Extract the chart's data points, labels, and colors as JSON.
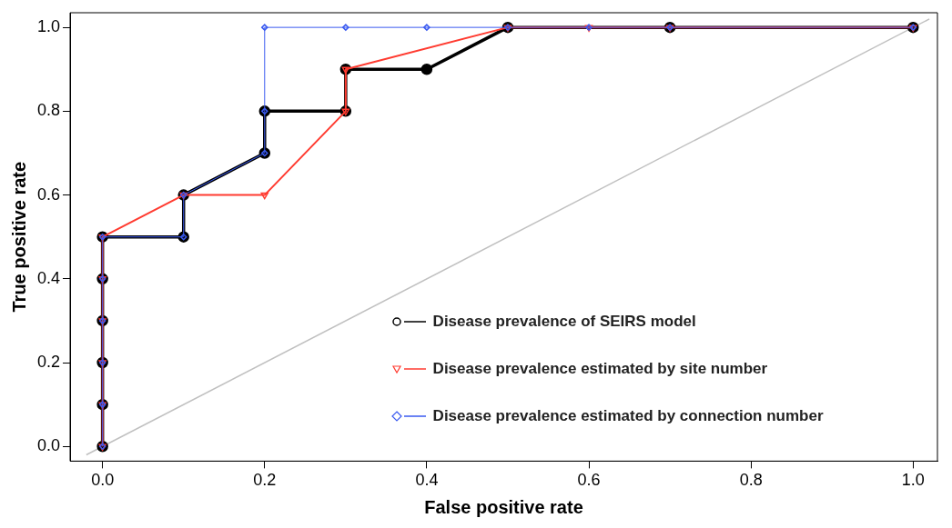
{
  "chart_data": {
    "type": "line",
    "xlabel": "False positive rate",
    "ylabel": "True positive rate",
    "xlim": [
      -0.04,
      1.03
    ],
    "ylim": [
      -0.035,
      1.035
    ],
    "xticks": [
      {
        "value": 0,
        "label": "0.0"
      },
      0.2,
      0.4,
      0.6,
      0.8,
      {
        "value": 1,
        "label": "1.0"
      }
    ],
    "yticks": [
      {
        "value": 0,
        "label": "0.0"
      },
      0.2,
      0.4,
      0.6,
      0.8,
      {
        "value": 1,
        "label": "1.0"
      }
    ],
    "grid": false,
    "legend": "right",
    "series": [
      {
        "type": "line",
        "color": "#c0c0c0",
        "marker": "none",
        "x": [
          -0.02,
          1.02
        ],
        "values": [
          -0.02,
          1.02
        ]
      },
      {
        "name": "Disease prevalence of SEIRS model",
        "color": "#000000",
        "marker": "circle",
        "x": [
          0,
          0,
          0,
          0,
          0,
          0,
          0.1,
          0.1,
          0.2,
          0.2,
          0.3,
          0.3,
          0.4,
          0.5,
          0.7,
          1.0
        ],
        "values": [
          0,
          0.1,
          0.2,
          0.3,
          0.4,
          0.5,
          0.5,
          0.6,
          0.7,
          0.8,
          0.8,
          0.9,
          0.9,
          1.0,
          1.0,
          1.0
        ]
      },
      {
        "name": "Disease prevalence estimated by site number",
        "color": "#ff3b30",
        "marker": "triangle",
        "x": [
          0,
          0,
          0,
          0,
          0,
          0,
          0.1,
          0.2,
          0.3,
          0.3,
          0.5,
          0.6,
          0.7,
          1.0
        ],
        "values": [
          0,
          0.1,
          0.2,
          0.3,
          0.4,
          0.5,
          0.6,
          0.6,
          0.8,
          0.9,
          1.0,
          1.0,
          1.0,
          1.0
        ]
      },
      {
        "name": "Disease prevalence estimated by connection number",
        "color": "#3a5af0",
        "marker": "diamond",
        "x": [
          0,
          0,
          0,
          0,
          0,
          0,
          0.1,
          0.1,
          0.2,
          0.2,
          0.2,
          0.3,
          0.4,
          0.5,
          0.6,
          0.7,
          1.0
        ],
        "values": [
          0,
          0.1,
          0.2,
          0.3,
          0.4,
          0.5,
          0.5,
          0.6,
          0.7,
          0.8,
          1.0,
          1.0,
          1.0,
          1.0,
          1.0,
          1.0,
          1.0
        ]
      }
    ]
  }
}
